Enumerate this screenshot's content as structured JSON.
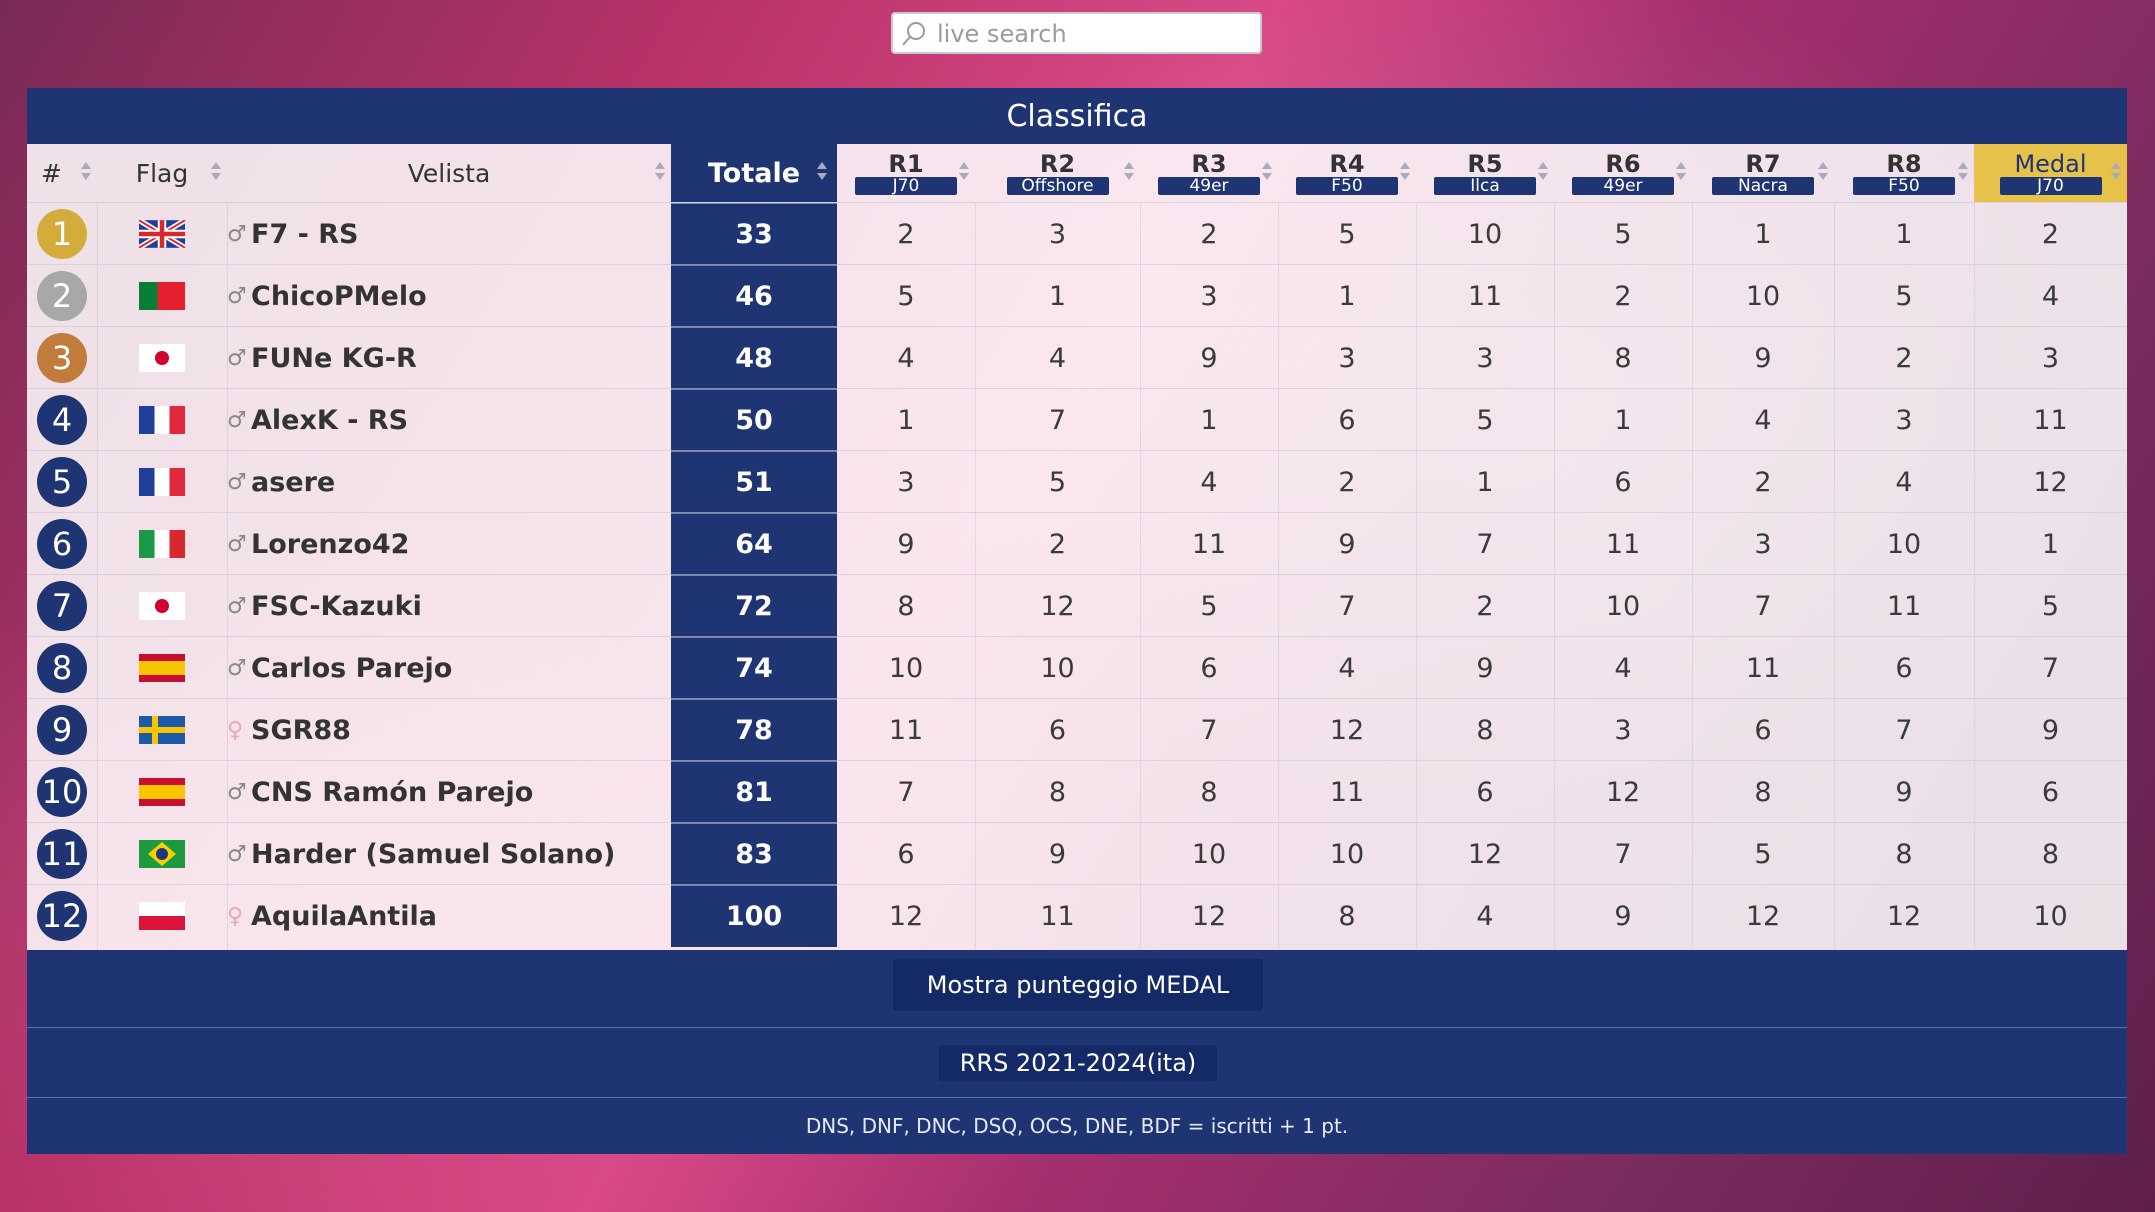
{
  "search": {
    "placeholder": "live search"
  },
  "table": {
    "title": "Classifica",
    "headers": {
      "rank": "#",
      "flag": "Flag",
      "sailor": "Velista",
      "total": "Totale"
    },
    "races": [
      {
        "name": "R1",
        "boat": "J70"
      },
      {
        "name": "R2",
        "boat": "Offshore"
      },
      {
        "name": "R3",
        "boat": "49er"
      },
      {
        "name": "R4",
        "boat": "F50"
      },
      {
        "name": "R5",
        "boat": "Ilca"
      },
      {
        "name": "R6",
        "boat": "49er"
      },
      {
        "name": "R7",
        "boat": "Nacra"
      },
      {
        "name": "R8",
        "boat": "F50"
      },
      {
        "name": "Medal",
        "boat": "J70"
      }
    ],
    "rows": [
      {
        "rank": "1",
        "flag": "gb",
        "gender": "♂",
        "name": "F7 - RS",
        "total": "33",
        "scores": [
          "2",
          "3",
          "2",
          "5",
          "10",
          "5",
          "1",
          "1",
          "2"
        ]
      },
      {
        "rank": "2",
        "flag": "pt",
        "gender": "♂",
        "name": "ChicoPMelo",
        "total": "46",
        "scores": [
          "5",
          "1",
          "3",
          "1",
          "11",
          "2",
          "10",
          "5",
          "4"
        ]
      },
      {
        "rank": "3",
        "flag": "jp",
        "gender": "♂",
        "name": "FUNe KG-R",
        "total": "48",
        "scores": [
          "4",
          "4",
          "9",
          "3",
          "3",
          "8",
          "9",
          "2",
          "3"
        ]
      },
      {
        "rank": "4",
        "flag": "fr",
        "gender": "♂",
        "name": "AlexK - RS",
        "total": "50",
        "scores": [
          "1",
          "7",
          "1",
          "6",
          "5",
          "1",
          "4",
          "3",
          "11"
        ]
      },
      {
        "rank": "5",
        "flag": "fr",
        "gender": "♂",
        "name": "asere",
        "total": "51",
        "scores": [
          "3",
          "5",
          "4",
          "2",
          "1",
          "6",
          "2",
          "4",
          "12"
        ]
      },
      {
        "rank": "6",
        "flag": "it",
        "gender": "♂",
        "name": "Lorenzo42",
        "total": "64",
        "scores": [
          "9",
          "2",
          "11",
          "9",
          "7",
          "11",
          "3",
          "10",
          "1"
        ]
      },
      {
        "rank": "7",
        "flag": "jp",
        "gender": "♂",
        "name": "FSC-Kazuki",
        "total": "72",
        "scores": [
          "8",
          "12",
          "5",
          "7",
          "2",
          "10",
          "7",
          "11",
          "5"
        ]
      },
      {
        "rank": "8",
        "flag": "es",
        "gender": "♂",
        "name": "Carlos Parejo",
        "total": "74",
        "scores": [
          "10",
          "10",
          "6",
          "4",
          "9",
          "4",
          "11",
          "6",
          "7"
        ]
      },
      {
        "rank": "9",
        "flag": "se",
        "gender": "♀",
        "name": "SGR88",
        "total": "78",
        "scores": [
          "11",
          "6",
          "7",
          "12",
          "8",
          "3",
          "6",
          "7",
          "9"
        ]
      },
      {
        "rank": "10",
        "flag": "es",
        "gender": "♂",
        "name": "CNS Ramón Parejo",
        "total": "81",
        "scores": [
          "7",
          "8",
          "8",
          "11",
          "6",
          "12",
          "8",
          "9",
          "6"
        ]
      },
      {
        "rank": "11",
        "flag": "br",
        "gender": "♂",
        "name": "Harder (Samuel Solano)",
        "total": "83",
        "scores": [
          "6",
          "9",
          "10",
          "10",
          "12",
          "7",
          "5",
          "8",
          "8"
        ]
      },
      {
        "rank": "12",
        "flag": "pl",
        "gender": "♀",
        "name": "AquilaAntila",
        "total": "100",
        "scores": [
          "12",
          "11",
          "12",
          "8",
          "4",
          "9",
          "12",
          "12",
          "10"
        ]
      }
    ]
  },
  "footer": {
    "medal_button": "Mostra punteggio MEDAL",
    "rules_button": "RRS 2021-2024(ita)",
    "note": "DNS, DNF, DNC, DSQ, OCS, DNE, BDF = iscritti + 1 pt."
  },
  "colors": {
    "navy": "#1e3473",
    "gold": "#d4ac3c",
    "silver": "#a8a8a8",
    "bronze": "#c17c3c",
    "medal_header": "#e6c24a"
  }
}
